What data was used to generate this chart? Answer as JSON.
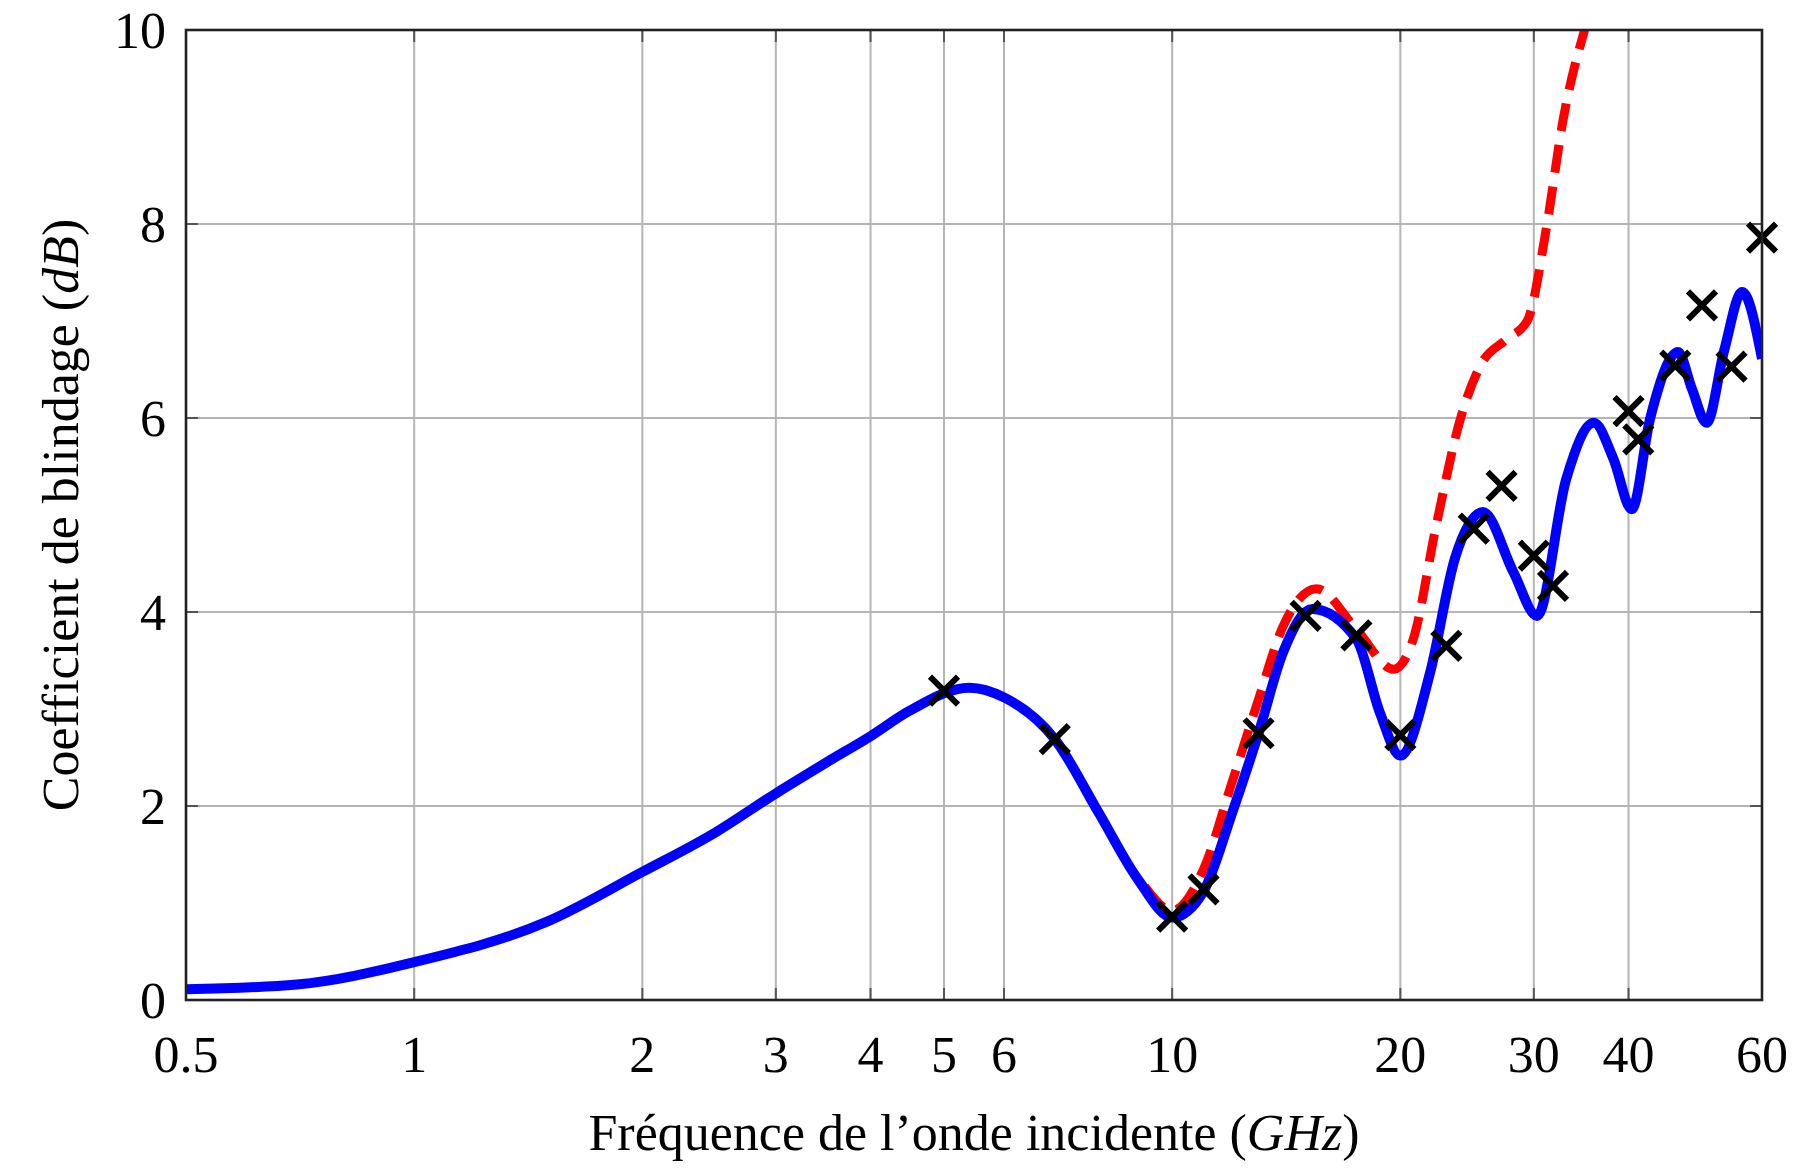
{
  "chart_data": {
    "type": "line",
    "xlabel": "Fréquence de l’onde incidente (GHz)",
    "ylabel": "Coefficient de blindage (dB)",
    "log": "x",
    "xlim": [
      0.5,
      60
    ],
    "xticks": [
      0.5,
      1,
      2,
      3,
      4,
      5,
      6,
      10,
      20,
      30,
      40,
      60
    ],
    "ylim": [
      0,
      10
    ],
    "yticks": [
      0,
      2,
      4,
      6,
      8,
      10
    ],
    "grid": true,
    "series": [
      {
        "color": "#ff0000",
        "line_style": "dashed",
        "marker": "none",
        "x": [
          9.2,
          10,
          11,
          12,
          13,
          14,
          15.5,
          17.5,
          19.6,
          20.8,
          22.3,
          24,
          25.5,
          27.6,
          29.4,
          31.2,
          32.8,
          35
        ],
        "values": [
          1.17,
          0.92,
          1.35,
          2.25,
          3.1,
          3.85,
          4.24,
          3.82,
          3.41,
          3.72,
          4.89,
          5.99,
          6.54,
          6.81,
          7.0,
          7.98,
          9.08,
          10
        ]
      },
      {
        "color": "#0000ff",
        "line_style": "solid",
        "marker": "none",
        "x": [
          0.5,
          0.7,
          1,
          1.5,
          2,
          2.5,
          3,
          3.5,
          4,
          4.5,
          5.4,
          6,
          7,
          8,
          9,
          10,
          11,
          12,
          13,
          14,
          15.3,
          17.5,
          18.8,
          20,
          21.9,
          23.6,
          25.7,
          28.2,
          30.3,
          33.1,
          36,
          38.2,
          40.4,
          42.7,
          46.5,
          48.5,
          50.7,
          53.5,
          56.5,
          60
        ],
        "values": [
          0.11,
          0.16,
          0.39,
          0.81,
          1.32,
          1.73,
          2.13,
          2.45,
          2.72,
          2.98,
          3.22,
          3.12,
          2.69,
          1.93,
          1.25,
          0.85,
          1.12,
          1.93,
          2.75,
          3.58,
          4.03,
          3.72,
          2.96,
          2.52,
          3.38,
          4.55,
          5.03,
          4.41,
          3.96,
          5.37,
          5.95,
          5.58,
          5.06,
          5.99,
          6.68,
          6.3,
          5.95,
          6.7,
          7.3,
          6.61
        ]
      },
      {
        "type": "scatter",
        "color": "#000000",
        "marker": "cross",
        "x": [
          5,
          7,
          10,
          11,
          13,
          15,
          17.5,
          20,
          23,
          25,
          27.2,
          30,
          31.8,
          40,
          41.2,
          46.1,
          50,
          54.7,
          60
        ],
        "values": [
          3.19,
          2.69,
          0.86,
          1.14,
          2.75,
          3.96,
          3.76,
          2.73,
          3.65,
          4.86,
          5.3,
          4.58,
          4.27,
          6.07,
          5.78,
          6.54,
          7.16,
          6.53,
          7.86
        ]
      }
    ]
  }
}
